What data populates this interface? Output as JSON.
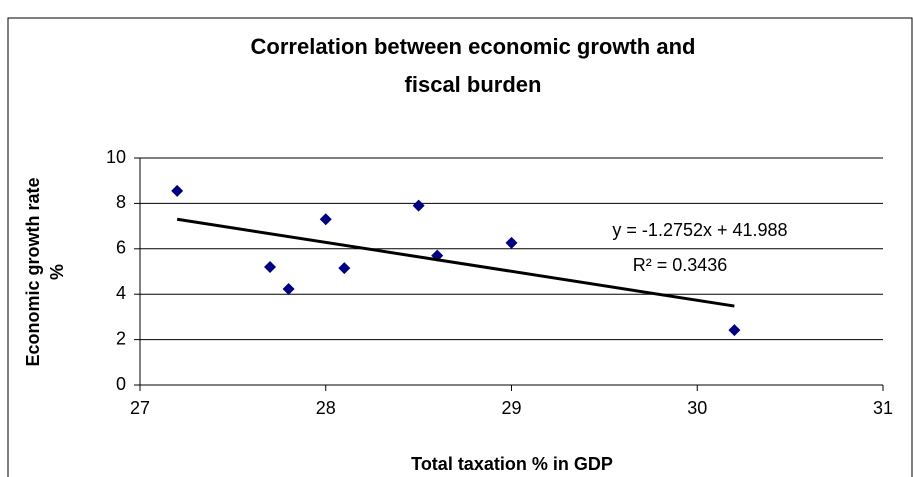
{
  "chart_data": {
    "type": "scatter",
    "title": [
      "Correlation between economic growth and",
      "fiscal burden"
    ],
    "x_label": "Total taxation % in GDP",
    "y_label": [
      "Economic growth rate",
      "%"
    ],
    "x": [
      27.2,
      27.7,
      27.8,
      28.0,
      28.1,
      28.5,
      28.6,
      29.0,
      30.2
    ],
    "series": [
      {
        "color": "#000080",
        "values": [
          8.55,
          5.2,
          4.23,
          7.3,
          5.15,
          7.9,
          5.7,
          6.26,
          2.42
        ]
      }
    ],
    "trendline": {
      "slope": -1.2752,
      "intercept": 41.988,
      "equation": "y = -1.2752x + 41.988",
      "r_squared": "R² = 0.3436",
      "color": "#000000"
    },
    "xlim": [
      27,
      31
    ],
    "xticks": [
      27,
      28,
      29,
      30,
      31
    ],
    "ylim": [
      0,
      10
    ],
    "yticks": [
      0,
      2,
      4,
      6,
      8,
      10
    ],
    "grid": true
  }
}
